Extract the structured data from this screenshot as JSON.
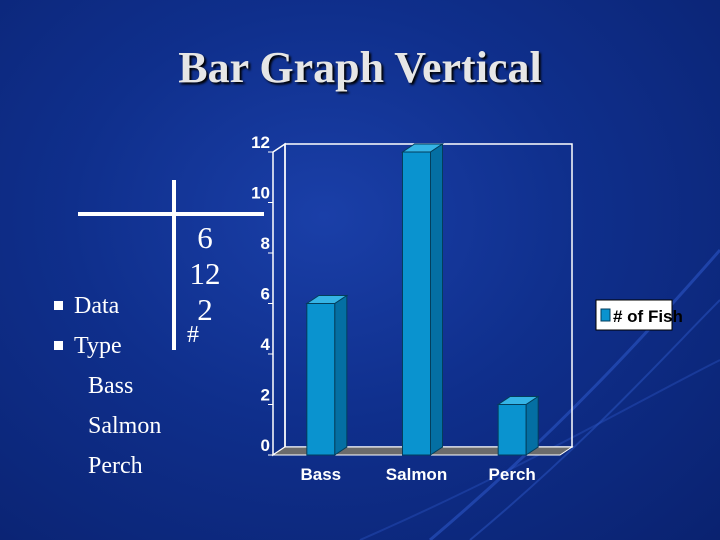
{
  "slide": {
    "title": "Bar Graph Vertical",
    "bullets": [
      "Data",
      "Type"
    ],
    "types": [
      "Bass",
      "Salmon",
      "Perch"
    ],
    "tchart_values": [
      "6",
      "12",
      "2"
    ],
    "tchart_symbol": "#"
  },
  "colors": {
    "bar_front": "#0a93cf",
    "bar_top": "#35b4e6",
    "bar_side": "#046fa3",
    "floor": "#6b6b6b"
  },
  "chart_data": {
    "type": "bar",
    "categories": [
      "Bass",
      "Salmon",
      "Perch"
    ],
    "series": [
      {
        "name": "# of Fish",
        "values": [
          6,
          12,
          2
        ]
      }
    ],
    "ylim": [
      0,
      12
    ],
    "yticks": [
      0,
      2,
      4,
      6,
      8,
      10,
      12
    ],
    "grid": false,
    "legend": "right",
    "three_d": true
  }
}
